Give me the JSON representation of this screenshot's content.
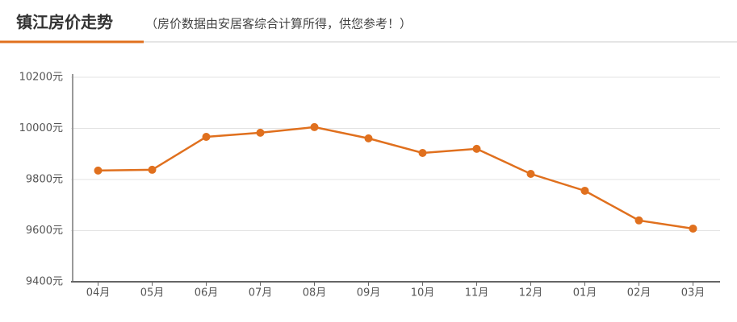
{
  "chart_data": {
    "type": "line",
    "title": "镇江房价走势",
    "subtitle": "（房价数据由安居客综合计算所得，供您参考！）",
    "categories": [
      "04月",
      "05月",
      "06月",
      "07月",
      "08月",
      "09月",
      "10月",
      "11月",
      "12月",
      "01月",
      "02月",
      "03月"
    ],
    "values": [
      9835,
      9838,
      9967,
      9983,
      10005,
      9961,
      9904,
      9920,
      9822,
      9756,
      9640,
      9608
    ],
    "color": "#e0701e",
    "ylim": [
      9400,
      10200
    ],
    "yticks": [
      {
        "value": 9400,
        "label": "9400元"
      },
      {
        "value": 9600,
        "label": "9600元"
      },
      {
        "value": 9800,
        "label": "9800元"
      },
      {
        "value": 10000,
        "label": "10000元"
      },
      {
        "value": 10200,
        "label": "10200元"
      }
    ],
    "grid": true
  }
}
